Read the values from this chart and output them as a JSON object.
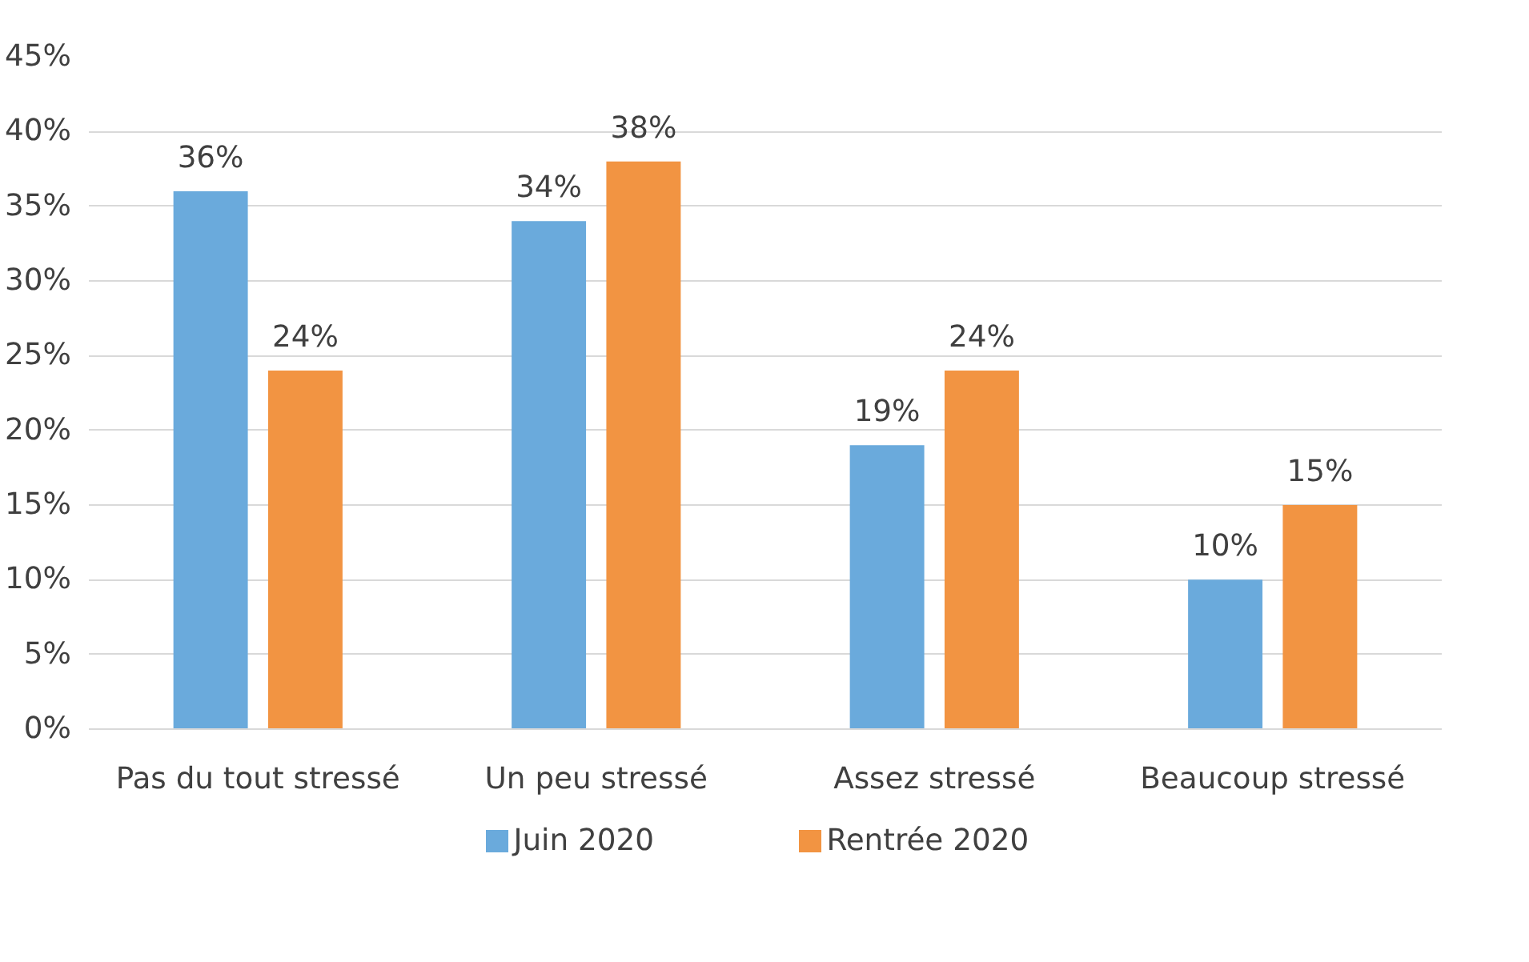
{
  "chart_data": {
    "type": "bar",
    "categories": [
      "Pas du tout stressé",
      "Un peu stressé",
      "Assez stressé",
      "Beaucoup stressé"
    ],
    "series": [
      {
        "name": "Juin 2020",
        "color": "#6aaadc",
        "values": [
          36,
          34,
          19,
          10
        ],
        "value_labels": [
          "36%",
          "34%",
          "19%",
          "10%"
        ]
      },
      {
        "name": "Rentrée 2020",
        "color": "#f29442",
        "values": [
          24,
          38,
          24,
          15
        ],
        "value_labels": [
          "24%",
          "38%",
          "24%",
          "15%"
        ]
      }
    ],
    "ylim": [
      0,
      45
    ],
    "yticks": [
      {
        "value": 0,
        "label": "0%"
      },
      {
        "value": 5,
        "label": "5%"
      },
      {
        "value": 10,
        "label": "10%"
      },
      {
        "value": 15,
        "label": "15%"
      },
      {
        "value": 20,
        "label": "20%"
      },
      {
        "value": 25,
        "label": "25%"
      },
      {
        "value": 30,
        "label": "30%"
      },
      {
        "value": 35,
        "label": "35%"
      },
      {
        "value": 40,
        "label": "40%"
      },
      {
        "value": 45,
        "label": "45%"
      }
    ],
    "grid": "y",
    "legend": "bottom"
  }
}
